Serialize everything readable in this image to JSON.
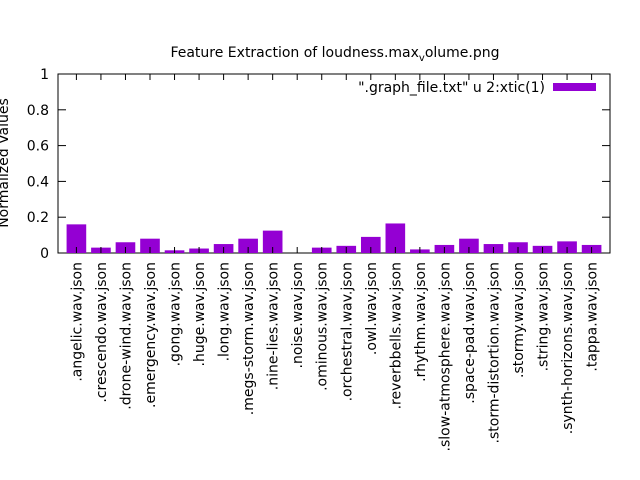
{
  "chart_data": {
    "type": "bar",
    "title": "Feature Extraction of loudness.max",
    "title_subscript": "v",
    "title_suffix": "olume.png",
    "ylabel": "Normalized Values",
    "xlabel": "",
    "ylim": [
      0,
      1
    ],
    "yticks": [
      "0",
      "0.2",
      "0.4",
      "0.6",
      "0.8",
      "1"
    ],
    "legend_position": "top-right",
    "grid": false,
    "bar_color": "#9400d3",
    "categories": [
      ".angelic.wav.json",
      ".crescendo.wav.json",
      ".drone-wind.wav.json",
      ".emergency.wav.json",
      ".gong.wav.json",
      ".huge.wav.json",
      ".long.wav.json",
      ".megs-storm.wav.json",
      ".nine-lies.wav.json",
      ".noise.wav.json",
      ".ominous.wav.json",
      ".orchestral.wav.json",
      ".owl.wav.json",
      ".reverbbells.wav.json",
      ".rhythm.wav.json",
      ".slow-atmosphere.wav.json",
      ".space-pad.wav.json",
      ".storm-distortion.wav.json",
      ".stormy.wav.json",
      ".string.wav.json",
      ".synth-horizons.wav.json",
      ".tappa.wav.json"
    ],
    "series": [
      {
        "name": "\".graph_file.txt\" u 2:xtic(1)",
        "values": [
          0.16,
          0.03,
          0.06,
          0.08,
          0.015,
          0.025,
          0.05,
          0.08,
          0.125,
          0.0,
          0.03,
          0.04,
          0.09,
          0.165,
          0.02,
          0.045,
          0.08,
          0.05,
          0.06,
          0.04,
          0.065,
          0.045
        ]
      }
    ]
  }
}
